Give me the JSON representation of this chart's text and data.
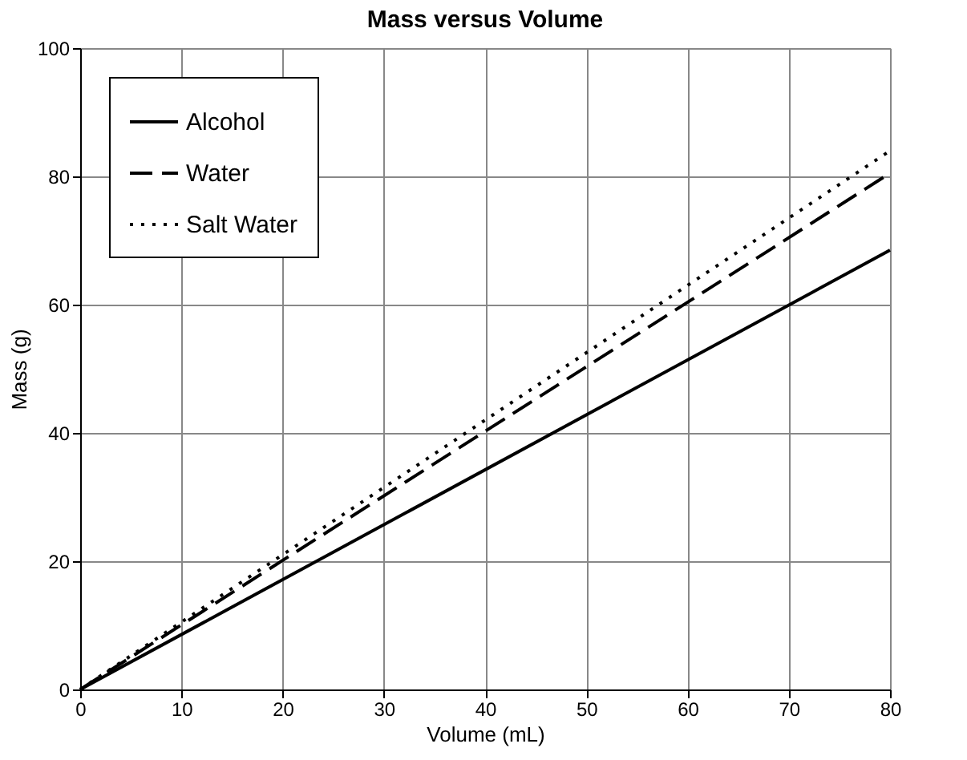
{
  "chart_data": {
    "type": "line",
    "title": "Mass versus Volume",
    "xlabel": "Volume (mL)",
    "ylabel": "Mass (g)",
    "x": [
      0,
      80
    ],
    "series": [
      {
        "name": "Alcohol",
        "color": "#000000",
        "values": [
          0,
          68.5
        ],
        "line_style": "solid"
      },
      {
        "name": "Water",
        "color": "#000000",
        "values": [
          0,
          80.5
        ],
        "line_style": "dashed"
      },
      {
        "name": "Salt Water",
        "color": "#000000",
        "values": [
          0,
          84
        ],
        "line_style": "dotted"
      }
    ],
    "xlim": [
      0,
      80
    ],
    "xticks": [
      0,
      10,
      20,
      30,
      40,
      50,
      60,
      70,
      80
    ],
    "ylim": [
      0,
      100
    ],
    "yticks": [
      0,
      20,
      40,
      60,
      80,
      100
    ],
    "grid": true,
    "legend": "top left",
    "marker": "none"
  }
}
